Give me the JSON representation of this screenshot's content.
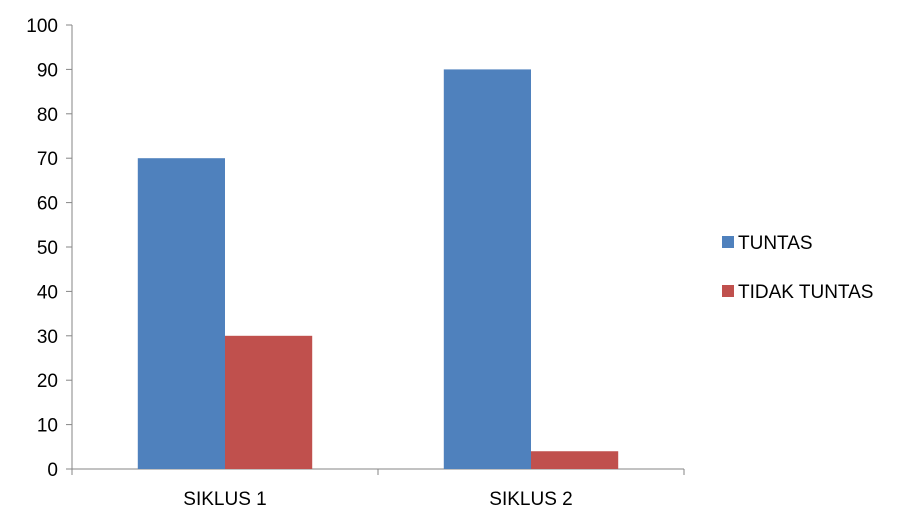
{
  "chart_data": {
    "type": "bar",
    "categories": [
      "SIKLUS 1",
      "SIKLUS 2"
    ],
    "series": [
      {
        "name": "TUNTAS",
        "values": [
          70,
          90
        ],
        "color": "#4F81BD"
      },
      {
        "name": "TIDAK TUNTAS",
        "values": [
          30,
          4
        ],
        "color": "#C0504D"
      }
    ],
    "y_ticks": [
      "0",
      "10",
      "20",
      "30",
      "40",
      "50",
      "60",
      "70",
      "80",
      "90",
      "100"
    ],
    "ylim": [
      0,
      100
    ],
    "title": "",
    "xlabel": "",
    "ylabel": "",
    "grid": false,
    "legend_position": "right"
  }
}
